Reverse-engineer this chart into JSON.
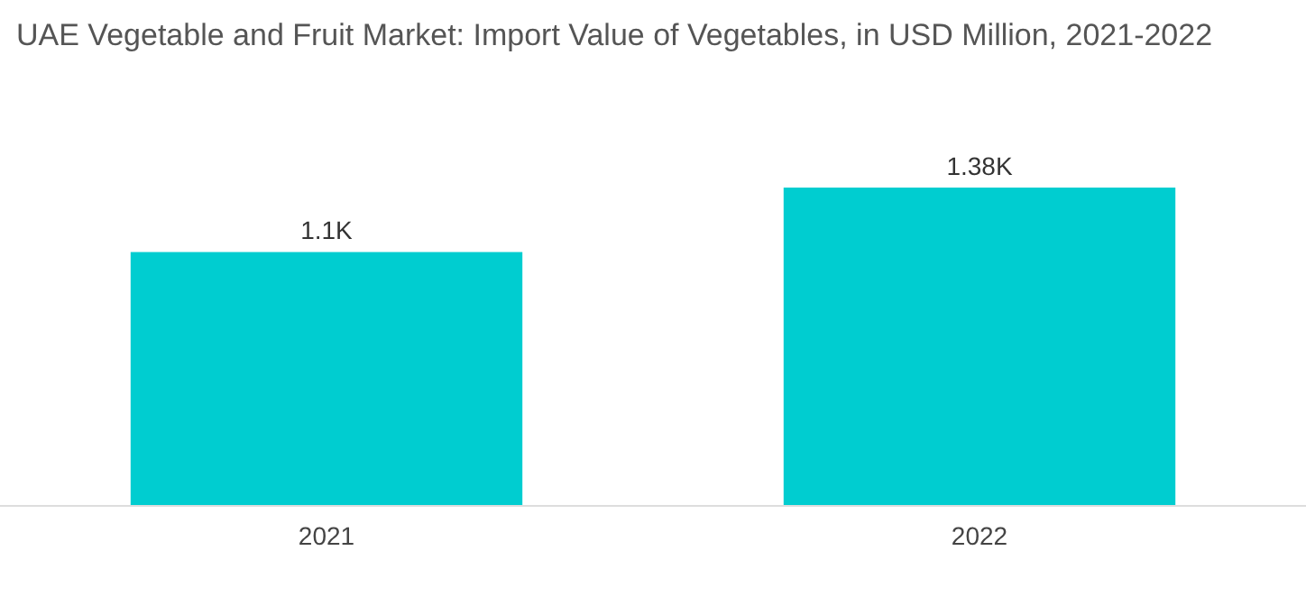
{
  "chart_data": {
    "type": "bar",
    "title": "UAE Vegetable and Fruit Market: Import Value of Vegetables, in USD Million, 2021-2022",
    "categories": [
      "2021",
      "2022"
    ],
    "values": [
      1100,
      1380
    ],
    "value_labels": [
      "1.1K",
      "1.38K"
    ],
    "color": "#00cdd0"
  }
}
